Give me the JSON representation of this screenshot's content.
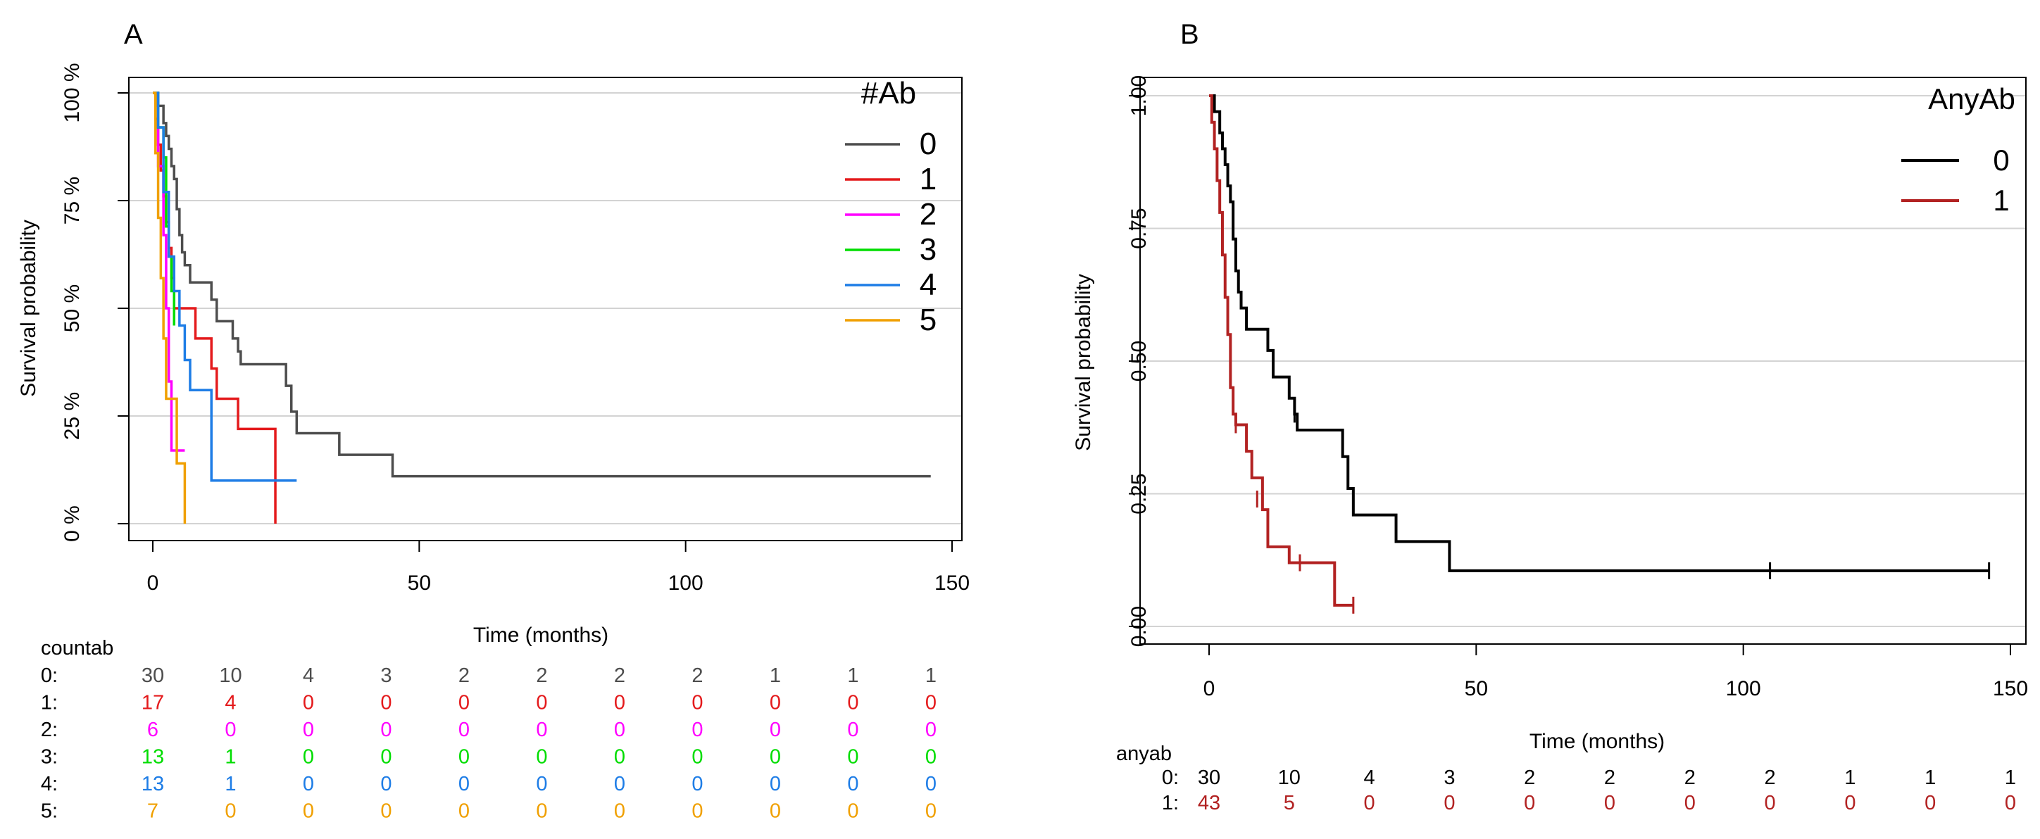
{
  "chart_data": [
    {
      "panel_label": "A",
      "type": "line",
      "subtype": "kaplan-meier",
      "title": "",
      "xlabel": "Time (months)",
      "ylabel": "Survival probability",
      "xlim": [
        0,
        150
      ],
      "ylim": [
        0,
        100
      ],
      "x_ticks": [
        0,
        50,
        100,
        150
      ],
      "y_ticks": [
        0,
        25,
        50,
        75,
        100
      ],
      "y_tick_labels": [
        "0 %",
        "25 %",
        "50 %",
        "75 %",
        "100 %"
      ],
      "grid": true,
      "legend": {
        "title": "#Ab",
        "position": "top-right",
        "entries": [
          "0",
          "1",
          "2",
          "3",
          "4",
          "5"
        ]
      },
      "series": [
        {
          "name": "0",
          "color": "#4d4d4d",
          "steps": [
            [
              0,
              100
            ],
            [
              1,
              97
            ],
            [
              2,
              93
            ],
            [
              2.5,
              90
            ],
            [
              3,
              87
            ],
            [
              3.5,
              83
            ],
            [
              4,
              80
            ],
            [
              4.5,
              73
            ],
            [
              5,
              67
            ],
            [
              5.5,
              63
            ],
            [
              6,
              60
            ],
            [
              7,
              56
            ],
            [
              10,
              56
            ],
            [
              11,
              52
            ],
            [
              12,
              47
            ],
            [
              15,
              43
            ],
            [
              16,
              40
            ],
            [
              16.5,
              37
            ],
            [
              24,
              37
            ],
            [
              25,
              32
            ],
            [
              26,
              26
            ],
            [
              27,
              21
            ],
            [
              34,
              21
            ],
            [
              35,
              16
            ],
            [
              44,
              16
            ],
            [
              45,
              11
            ],
            [
              146,
              11
            ]
          ]
        },
        {
          "name": "1",
          "color": "#e41a1c",
          "steps": [
            [
              0,
              100
            ],
            [
              0.5,
              94
            ],
            [
              1,
              88
            ],
            [
              1.5,
              82
            ],
            [
              2,
              76
            ],
            [
              2.5,
              70
            ],
            [
              3,
              64
            ],
            [
              3.5,
              57
            ],
            [
              4,
              50
            ],
            [
              7,
              50
            ],
            [
              8,
              43
            ],
            [
              10,
              43
            ],
            [
              11,
              36
            ],
            [
              12,
              29
            ],
            [
              15,
              29
            ],
            [
              16,
              22
            ],
            [
              23,
              22
            ],
            [
              23,
              0
            ]
          ]
        },
        {
          "name": "2",
          "color": "#ff00ff",
          "steps": [
            [
              0,
              100
            ],
            [
              1,
              83
            ],
            [
              2,
              67
            ],
            [
              2.5,
              50
            ],
            [
              3,
              33
            ],
            [
              3.5,
              17
            ],
            [
              6,
              17
            ]
          ]
        },
        {
          "name": "3",
          "color": "#00dd00",
          "steps": [
            [
              0,
              100
            ],
            [
              1,
              92
            ],
            [
              2,
              85
            ],
            [
              2.5,
              69
            ],
            [
              3,
              62
            ],
            [
              3.5,
              54
            ],
            [
              4,
              46
            ]
          ]
        },
        {
          "name": "4",
          "color": "#1e7de6",
          "steps": [
            [
              0,
              100
            ],
            [
              1,
              92
            ],
            [
              2,
              77
            ],
            [
              3,
              62
            ],
            [
              4,
              54
            ],
            [
              5,
              46
            ],
            [
              6,
              38
            ],
            [
              7,
              31
            ],
            [
              10,
              31
            ],
            [
              11,
              10
            ],
            [
              27,
              10
            ]
          ]
        },
        {
          "name": "5",
          "color": "#f0a000",
          "steps": [
            [
              0,
              100
            ],
            [
              0.5,
              86
            ],
            [
              1,
              71
            ],
            [
              1.5,
              57
            ],
            [
              2,
              43
            ],
            [
              2.5,
              29
            ],
            [
              4,
              29
            ],
            [
              4.5,
              14
            ],
            [
              6,
              14
            ],
            [
              6,
              0
            ]
          ]
        }
      ],
      "risk_table": {
        "title": "countab",
        "time_points": [
          0,
          15,
          30,
          45,
          60,
          75,
          90,
          105,
          120,
          135,
          150
        ],
        "rows": [
          {
            "label": "0:",
            "color": "#4d4d4d",
            "values": [
              "30",
              "10",
              "4",
              "3",
              "2",
              "2",
              "2",
              "2",
              "1",
              "1",
              "1"
            ]
          },
          {
            "label": "1:",
            "color": "#e41a1c",
            "values": [
              "17",
              "4",
              "0",
              "0",
              "0",
              "0",
              "0",
              "0",
              "0",
              "0",
              "0"
            ]
          },
          {
            "label": "2:",
            "color": "#ff00ff",
            "values": [
              "6",
              "0",
              "0",
              "0",
              "0",
              "0",
              "0",
              "0",
              "0",
              "0",
              "0"
            ]
          },
          {
            "label": "3:",
            "color": "#00dd00",
            "values": [
              "13",
              "1",
              "0",
              "0",
              "0",
              "0",
              "0",
              "0",
              "0",
              "0",
              "0"
            ]
          },
          {
            "label": "4:",
            "color": "#1e7de6",
            "values": [
              "13",
              "1",
              "0",
              "0",
              "0",
              "0",
              "0",
              "0",
              "0",
              "0",
              "0"
            ]
          },
          {
            "label": "5:",
            "color": "#f0a000",
            "values": [
              "7",
              "0",
              "0",
              "0",
              "0",
              "0",
              "0",
              "0",
              "0",
              "0",
              "0"
            ]
          }
        ]
      }
    },
    {
      "panel_label": "B",
      "type": "line",
      "subtype": "kaplan-meier",
      "title": "",
      "xlabel": "Time (months)",
      "ylabel": "Survival probability",
      "xlim": [
        0,
        150
      ],
      "ylim": [
        0,
        1
      ],
      "x_ticks": [
        0,
        50,
        100,
        150
      ],
      "y_ticks": [
        0,
        0.25,
        0.5,
        0.75,
        1
      ],
      "y_tick_labels": [
        "0.00",
        "0.25",
        "0.50",
        "0.75",
        "1.00"
      ],
      "grid": true,
      "legend": {
        "title": "AnyAb",
        "position": "top-right",
        "entries": [
          "0",
          "1"
        ]
      },
      "series": [
        {
          "name": "0",
          "color": "#000000",
          "censor": [
            [
              16,
              0.4
            ],
            [
              105,
              0.105
            ],
            [
              146,
              0.105
            ]
          ],
          "steps": [
            [
              0,
              1
            ],
            [
              1,
              0.97
            ],
            [
              2,
              0.93
            ],
            [
              2.5,
              0.9
            ],
            [
              3,
              0.87
            ],
            [
              3.5,
              0.83
            ],
            [
              4,
              0.8
            ],
            [
              4.5,
              0.73
            ],
            [
              5,
              0.67
            ],
            [
              5.5,
              0.63
            ],
            [
              6,
              0.6
            ],
            [
              7,
              0.56
            ],
            [
              10,
              0.56
            ],
            [
              11,
              0.52
            ],
            [
              12,
              0.47
            ],
            [
              15,
              0.43
            ],
            [
              16,
              0.4
            ],
            [
              16.5,
              0.37
            ],
            [
              24,
              0.37
            ],
            [
              25,
              0.32
            ],
            [
              26,
              0.26
            ],
            [
              27,
              0.21
            ],
            [
              34,
              0.21
            ],
            [
              35,
              0.16
            ],
            [
              44,
              0.16
            ],
            [
              45,
              0.105
            ],
            [
              146,
              0.105
            ]
          ]
        },
        {
          "name": "1",
          "color": "#b22222",
          "censor": [
            [
              5,
              0.38
            ],
            [
              9,
              0.24
            ],
            [
              17,
              0.12
            ],
            [
              27,
              0.04
            ]
          ],
          "steps": [
            [
              0,
              1
            ],
            [
              0.5,
              0.95
            ],
            [
              1,
              0.9
            ],
            [
              1.5,
              0.84
            ],
            [
              2,
              0.78
            ],
            [
              2.5,
              0.7
            ],
            [
              3,
              0.62
            ],
            [
              3.5,
              0.55
            ],
            [
              4,
              0.45
            ],
            [
              4.5,
              0.4
            ],
            [
              5,
              0.38
            ],
            [
              7,
              0.33
            ],
            [
              8,
              0.28
            ],
            [
              10,
              0.22
            ],
            [
              11,
              0.15
            ],
            [
              15,
              0.12
            ],
            [
              23,
              0.12
            ],
            [
              23.5,
              0.04
            ],
            [
              27,
              0.04
            ]
          ]
        }
      ],
      "risk_table": {
        "title": "anyab",
        "time_points": [
          0,
          15,
          30,
          45,
          60,
          75,
          90,
          105,
          120,
          135,
          150
        ],
        "rows": [
          {
            "label": "0:",
            "color": "#000000",
            "values": [
              "30",
              "10",
              "4",
              "3",
              "2",
              "2",
              "2",
              "2",
              "1",
              "1",
              "1"
            ]
          },
          {
            "label": "1:",
            "color": "#b22222",
            "values": [
              "43",
              "5",
              "0",
              "0",
              "0",
              "0",
              "0",
              "0",
              "0",
              "0",
              "0"
            ]
          }
        ]
      }
    }
  ]
}
